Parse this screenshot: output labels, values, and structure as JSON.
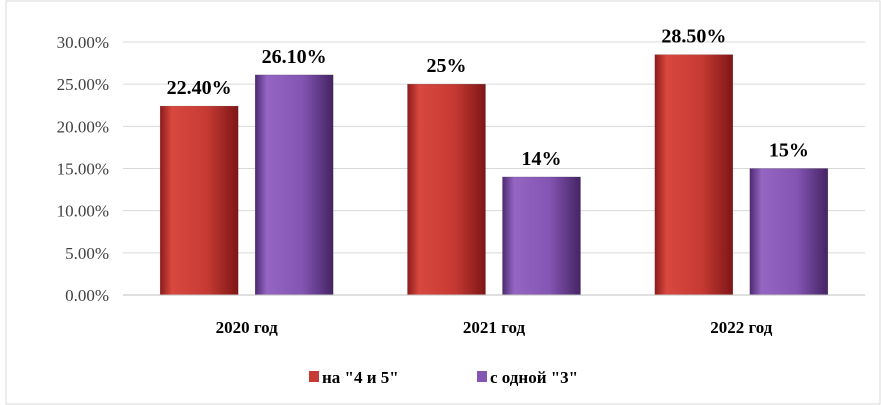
{
  "chart_data": {
    "type": "bar",
    "categories": [
      "2020 год",
      "2021 год",
      "2022 год"
    ],
    "series": [
      {
        "name": "на \"4 и 5\"",
        "values": [
          22.4,
          25,
          28.5
        ],
        "labels": [
          "22.40%",
          "25%",
          "28.50%"
        ],
        "color": "#C0392B"
      },
      {
        "name": "с одной \"3\"",
        "values": [
          26.1,
          14,
          15
        ],
        "labels": [
          "26.10%",
          "14%",
          "15%"
        ],
        "color": "#7D4AA6"
      }
    ],
    "y_ticks": [
      "0.00%",
      "5.00%",
      "10.00%",
      "15.00%",
      "20.00%",
      "25.00%",
      "30.00%"
    ],
    "ylim": [
      0,
      30
    ],
    "grid": true,
    "legend": "bottom"
  }
}
